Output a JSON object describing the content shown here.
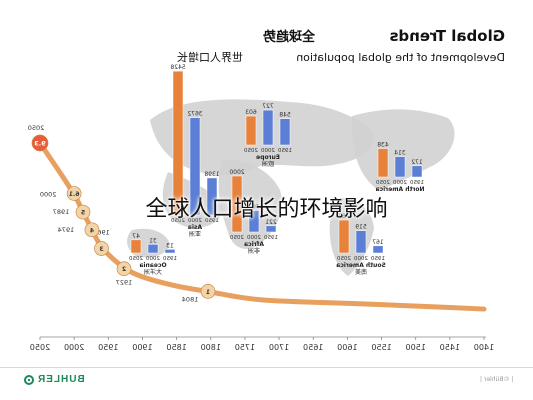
{
  "caption": "全球人口增长的环境影响",
  "header": {
    "title_cn": "全球趋势",
    "title_en": "Global Trends",
    "subtitle_cn": "世界人口增长",
    "subtitle_en": "Development of the global population"
  },
  "footer": {
    "logo_text": "BUHLER",
    "right_text": "| ©Bühler |"
  },
  "colors": {
    "curve": "#e8a060",
    "dot": "#f3d4a8",
    "dot_highlight": "#e85c3a",
    "bar_1950": "#e8813a",
    "bar_future": "#5b7fd6",
    "map": "#d2d2d2"
  },
  "chart_data": [
    {
      "type": "line",
      "title": "Development of the global population",
      "xlabel": "",
      "ylabel": "",
      "x_ticks": [
        "2050",
        "2000",
        "1950",
        "1900",
        "1850",
        "1800",
        "1750",
        "1700",
        "1650",
        "1600",
        "1550",
        "1500",
        "1450",
        "1400"
      ],
      "xlim": [
        1400,
        2050
      ],
      "x_reversed": true,
      "points": [
        {
          "year": 1400,
          "value": 0.35
        },
        {
          "year": 1500,
          "value": 0.45
        },
        {
          "year": 1600,
          "value": 0.55
        },
        {
          "year": 1700,
          "value": 0.62
        },
        {
          "year": 1750,
          "value": 0.72
        },
        {
          "year": 1804,
          "value": 1.0
        },
        {
          "year": 1850,
          "value": 1.2
        },
        {
          "year": 1900,
          "value": 1.6
        },
        {
          "year": 1927,
          "value": 2.0
        },
        {
          "year": 1960,
          "value": 3.0
        },
        {
          "year": 1974,
          "value": 4.0
        },
        {
          "year": 1987,
          "value": 5.0
        },
        {
          "year": 2000,
          "value": 6.1
        },
        {
          "year": 2050,
          "value": 9.3
        }
      ],
      "milestones": [
        {
          "label": "1",
          "year": "1804"
        },
        {
          "label": "2",
          "year": "1927"
        },
        {
          "label": "3",
          "year": "1960"
        },
        {
          "label": "4",
          "year": "1974"
        },
        {
          "label": "5",
          "year": "1987"
        },
        {
          "label": "6.1",
          "year": "2000"
        },
        {
          "label": "9.3",
          "year": "2050"
        }
      ]
    },
    {
      "type": "bar",
      "title": "Regional population",
      "categories": [
        "1950",
        "2000",
        "2050"
      ],
      "series": [
        {
          "name": "Asia",
          "name_cn": "亚洲",
          "values": [
            1398,
            3672,
            5428
          ]
        },
        {
          "name": "Europe",
          "name_cn": "欧洲",
          "values": [
            548,
            727,
            603
          ]
        },
        {
          "name": "Africa",
          "name_cn": "非洲",
          "values": [
            221,
            767,
            2000
          ]
        },
        {
          "name": "North America",
          "name_cn": "",
          "values": [
            172,
            314,
            438
          ]
        },
        {
          "name": "South America",
          "name_cn": "南美",
          "values": [
            167,
            519,
            767
          ]
        },
        {
          "name": "Oceania",
          "name_cn": "大洋洲",
          "values": [
            13,
            31,
            47
          ]
        }
      ]
    }
  ]
}
